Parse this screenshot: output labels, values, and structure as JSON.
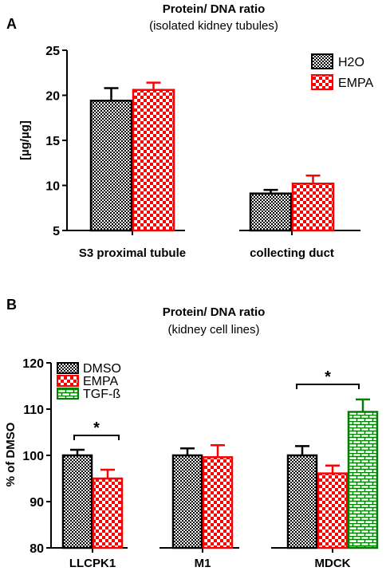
{
  "chart_data": [
    {
      "panel_label": "A",
      "type": "bar",
      "title": "Protein/ DNA ratio",
      "subtitle": "(isolated kidney tubules)",
      "xlabel": "",
      "ylabel": "[µg/µg]",
      "ylim": [
        5,
        25
      ],
      "yticks": [
        5,
        10,
        15,
        20,
        25
      ],
      "categories": [
        "S3 proximal tubule",
        "collecting duct"
      ],
      "legend_position": "top-right",
      "series": [
        {
          "name": "H2O",
          "values": [
            19.4,
            9.1
          ],
          "errors": [
            1.4,
            0.4
          ],
          "color": "#000000",
          "pattern": "checker-dense"
        },
        {
          "name": "EMPA",
          "values": [
            20.6,
            10.2
          ],
          "errors": [
            0.8,
            0.9
          ],
          "color": "#ff0000",
          "pattern": "checker"
        }
      ]
    },
    {
      "panel_label": "B",
      "type": "bar",
      "title": "Protein/ DNA ratio",
      "subtitle": "(kidney cell lines)",
      "xlabel": "",
      "ylabel": "% of DMSO",
      "ylim": [
        80,
        120
      ],
      "yticks": [
        80,
        90,
        100,
        110,
        120
      ],
      "categories": [
        "LLCPK1",
        "M1",
        "MDCK"
      ],
      "legend_position": "top-left",
      "series": [
        {
          "name": "DMSO",
          "values": [
            100,
            100,
            100
          ],
          "errors": [
            1.2,
            1.5,
            2.0
          ],
          "color": "#000000",
          "pattern": "checker-dense"
        },
        {
          "name": "EMPA",
          "values": [
            95,
            99.6,
            96.1
          ],
          "errors": [
            1.9,
            2.6,
            1.7
          ],
          "color": "#ff0000",
          "pattern": "checker"
        },
        {
          "name": "TGF-ß",
          "values": [
            null,
            null,
            109.4
          ],
          "errors": [
            null,
            null,
            2.7
          ],
          "color": "#008000",
          "pattern": "brick"
        }
      ],
      "significance": [
        {
          "category": "LLCPK1",
          "label": "*"
        },
        {
          "category": "MDCK",
          "label": "*"
        }
      ]
    }
  ]
}
